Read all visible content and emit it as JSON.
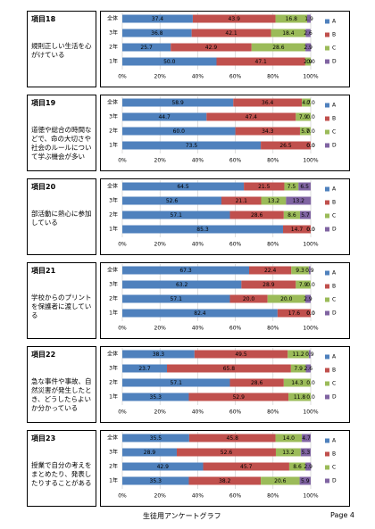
{
  "chart_data": [
    {
      "type": "bar",
      "title": "項目18",
      "subtitle": "規則正しい生活を心がけている",
      "categories": [
        "全体",
        "3年",
        "2年",
        "1年"
      ],
      "series": [
        {
          "name": "A",
          "color": "#4f81bd",
          "values": [
            37.4,
            36.8,
            25.7,
            50
          ],
          "value_labels": [
            "37.4",
            "36.8",
            "25.7",
            "50.0"
          ]
        },
        {
          "name": "B",
          "color": "#c0504d",
          "values": [
            43.9,
            42.1,
            42.9,
            47.1
          ],
          "value_labels": [
            "43.9",
            "42.1",
            "42.9",
            "47.1"
          ]
        },
        {
          "name": "C",
          "color": "#9bbb59",
          "values": [
            16.8,
            18.4,
            28.6,
            2.9
          ],
          "value_labels": [
            "16.8",
            "18.4",
            "28.6",
            "2.9"
          ]
        },
        {
          "name": "D",
          "color": "#8064a2",
          "values": [
            1.9,
            2.6,
            2.9,
            0
          ],
          "value_labels": [
            "1.9",
            "2.6",
            "2.9",
            "0.0"
          ]
        }
      ],
      "xlim": [
        0,
        100
      ],
      "xticks": [
        {
          "value": 0,
          "label": "0%"
        },
        {
          "value": 20,
          "label": "20%"
        },
        {
          "value": 40,
          "label": "40%"
        },
        {
          "value": 60,
          "label": "60%"
        },
        {
          "value": 80,
          "label": "80%"
        },
        {
          "value": 100,
          "label": "100%"
        }
      ],
      "grid": true
    },
    {
      "type": "bar",
      "title": "項目19",
      "subtitle": "道徳や総合の時間などで、命の大切さや社会のルールについて学ぶ機会が多い",
      "categories": [
        "全体",
        "3年",
        "2年",
        "1年"
      ],
      "series": [
        {
          "name": "A",
          "color": "#4f81bd",
          "values": [
            58.9,
            44.7,
            60,
            73.5
          ],
          "value_labels": [
            "58.9",
            "44.7",
            "60.0",
            "73.5"
          ]
        },
        {
          "name": "B",
          "color": "#c0504d",
          "values": [
            36.4,
            47.4,
            34.3,
            26.5
          ],
          "value_labels": [
            "36.4",
            "47.4",
            "34.3",
            "26.5"
          ]
        },
        {
          "name": "C",
          "color": "#9bbb59",
          "values": [
            4.7,
            7.9,
            5.7,
            0
          ],
          "value_labels": [
            "4.7",
            "7.9",
            "5.7",
            "0.0"
          ]
        },
        {
          "name": "D",
          "color": "#8064a2",
          "values": [
            0,
            0,
            0,
            0
          ],
          "value_labels": [
            "0.0",
            "0.0",
            "0.0",
            "0.0"
          ]
        }
      ],
      "xlim": [
        0,
        100
      ],
      "xticks": [
        {
          "value": 0,
          "label": "0%"
        },
        {
          "value": 20,
          "label": "20%"
        },
        {
          "value": 40,
          "label": "40%"
        },
        {
          "value": 60,
          "label": "60%"
        },
        {
          "value": 80,
          "label": "80%"
        },
        {
          "value": 100,
          "label": "100%"
        }
      ],
      "grid": true
    },
    {
      "type": "bar",
      "title": "項目20",
      "subtitle": "部活動に熱心に参加している",
      "categories": [
        "全体",
        "3年",
        "2年",
        "1年"
      ],
      "series": [
        {
          "name": "A",
          "color": "#4f81bd",
          "values": [
            64.5,
            52.6,
            57.1,
            85.3
          ],
          "value_labels": [
            "64.5",
            "52.6",
            "57.1",
            "85.3"
          ]
        },
        {
          "name": "B",
          "color": "#c0504d",
          "values": [
            21.5,
            21.1,
            28.6,
            14.7
          ],
          "value_labels": [
            "21.5",
            "21.1",
            "28.6",
            "14.7"
          ]
        },
        {
          "name": "C",
          "color": "#9bbb59",
          "values": [
            7.5,
            13.2,
            8.6,
            0
          ],
          "value_labels": [
            "7.5",
            "13.2",
            "8.6",
            "0.0"
          ]
        },
        {
          "name": "D",
          "color": "#8064a2",
          "values": [
            6.5,
            13.2,
            5.7,
            0
          ],
          "value_labels": [
            "6.5",
            "13.2",
            "5.7",
            "0.0"
          ]
        }
      ],
      "xlim": [
        0,
        100
      ],
      "xticks": [
        {
          "value": 0,
          "label": "0%"
        },
        {
          "value": 20,
          "label": "20%"
        },
        {
          "value": 40,
          "label": "40%"
        },
        {
          "value": 60,
          "label": "60%"
        },
        {
          "value": 80,
          "label": "80%"
        },
        {
          "value": 100,
          "label": "100%"
        }
      ],
      "grid": true
    },
    {
      "type": "bar",
      "title": "項目21",
      "subtitle": "学校からのプリントを保護者に渡している",
      "categories": [
        "全体",
        "3年",
        "2年",
        "1年"
      ],
      "series": [
        {
          "name": "A",
          "color": "#4f81bd",
          "values": [
            67.3,
            63.2,
            57.1,
            82.4
          ],
          "value_labels": [
            "67.3",
            "63.2",
            "57.1",
            "82.4"
          ]
        },
        {
          "name": "B",
          "color": "#c0504d",
          "values": [
            22.4,
            28.9,
            20,
            17.6
          ],
          "value_labels": [
            "22.4",
            "28.9",
            "20.0",
            "17.6"
          ]
        },
        {
          "name": "C",
          "color": "#9bbb59",
          "values": [
            9.3,
            7.9,
            20,
            0
          ],
          "value_labels": [
            "9.3",
            "7.9",
            "20.0",
            "0.0"
          ]
        },
        {
          "name": "D",
          "color": "#8064a2",
          "values": [
            0.9,
            0,
            2.9,
            0
          ],
          "value_labels": [
            "0.9",
            "0.0",
            "2.9",
            "0.0"
          ]
        }
      ],
      "xlim": [
        0,
        100
      ],
      "xticks": [
        {
          "value": 0,
          "label": "0%"
        },
        {
          "value": 20,
          "label": "20%"
        },
        {
          "value": 40,
          "label": "40%"
        },
        {
          "value": 60,
          "label": "60%"
        },
        {
          "value": 80,
          "label": "80%"
        },
        {
          "value": 100,
          "label": "100%"
        }
      ],
      "grid": true
    },
    {
      "type": "bar",
      "title": "項目22",
      "subtitle": "急な事件や事故、自然災害が発生したとき、どうしたらよいか分かっている",
      "categories": [
        "全体",
        "3年",
        "2年",
        "1年"
      ],
      "series": [
        {
          "name": "A",
          "color": "#4f81bd",
          "values": [
            38.3,
            23.7,
            57.1,
            35.3
          ],
          "value_labels": [
            "38.3",
            "23.7",
            "57.1",
            "35.3"
          ]
        },
        {
          "name": "B",
          "color": "#c0504d",
          "values": [
            49.5,
            65.8,
            28.6,
            52.9
          ],
          "value_labels": [
            "49.5",
            "65.8",
            "28.6",
            "52.9"
          ]
        },
        {
          "name": "C",
          "color": "#9bbb59",
          "values": [
            11.2,
            7.9,
            14.3,
            11.8
          ],
          "value_labels": [
            "11.2",
            "7.9",
            "14.3",
            "11.8"
          ]
        },
        {
          "name": "D",
          "color": "#8064a2",
          "values": [
            0.9,
            2.6,
            0,
            0
          ],
          "value_labels": [
            "0.9",
            "2.6",
            "0.0",
            "0.0"
          ]
        }
      ],
      "xlim": [
        0,
        100
      ],
      "xticks": [
        {
          "value": 0,
          "label": "0%"
        },
        {
          "value": 20,
          "label": "20%"
        },
        {
          "value": 40,
          "label": "40%"
        },
        {
          "value": 60,
          "label": "60%"
        },
        {
          "value": 80,
          "label": "80%"
        },
        {
          "value": 100,
          "label": "100%"
        }
      ],
      "grid": true
    },
    {
      "type": "bar",
      "title": "項目23",
      "subtitle": "授業で自分の考えをまとめたり、発表したりすることがある",
      "categories": [
        "全体",
        "3年",
        "2年",
        "1年"
      ],
      "series": [
        {
          "name": "A",
          "color": "#4f81bd",
          "values": [
            35.5,
            28.9,
            42.9,
            35.3
          ],
          "value_labels": [
            "35.5",
            "28.9",
            "42.9",
            "35.3"
          ]
        },
        {
          "name": "B",
          "color": "#c0504d",
          "values": [
            45.8,
            52.6,
            45.7,
            38.2
          ],
          "value_labels": [
            "45.8",
            "52.6",
            "45.7",
            "38.2"
          ]
        },
        {
          "name": "C",
          "color": "#9bbb59",
          "values": [
            14,
            13.2,
            8.6,
            20.6
          ],
          "value_labels": [
            "14.0",
            "13.2",
            "8.6",
            "20.6"
          ]
        },
        {
          "name": "D",
          "color": "#8064a2",
          "values": [
            4.7,
            5.3,
            2.9,
            5.9
          ],
          "value_labels": [
            "4.7",
            "5.3",
            "2.9",
            "5.9"
          ]
        }
      ],
      "xlim": [
        0,
        100
      ],
      "xticks": [
        {
          "value": 0,
          "label": "0%"
        },
        {
          "value": 20,
          "label": "20%"
        },
        {
          "value": 40,
          "label": "40%"
        },
        {
          "value": 60,
          "label": "60%"
        },
        {
          "value": 80,
          "label": "80%"
        },
        {
          "value": 100,
          "label": "100%"
        }
      ],
      "grid": true
    }
  ],
  "footer": {
    "title": "生徒用アンケートグラフ",
    "page": "Page 4"
  }
}
